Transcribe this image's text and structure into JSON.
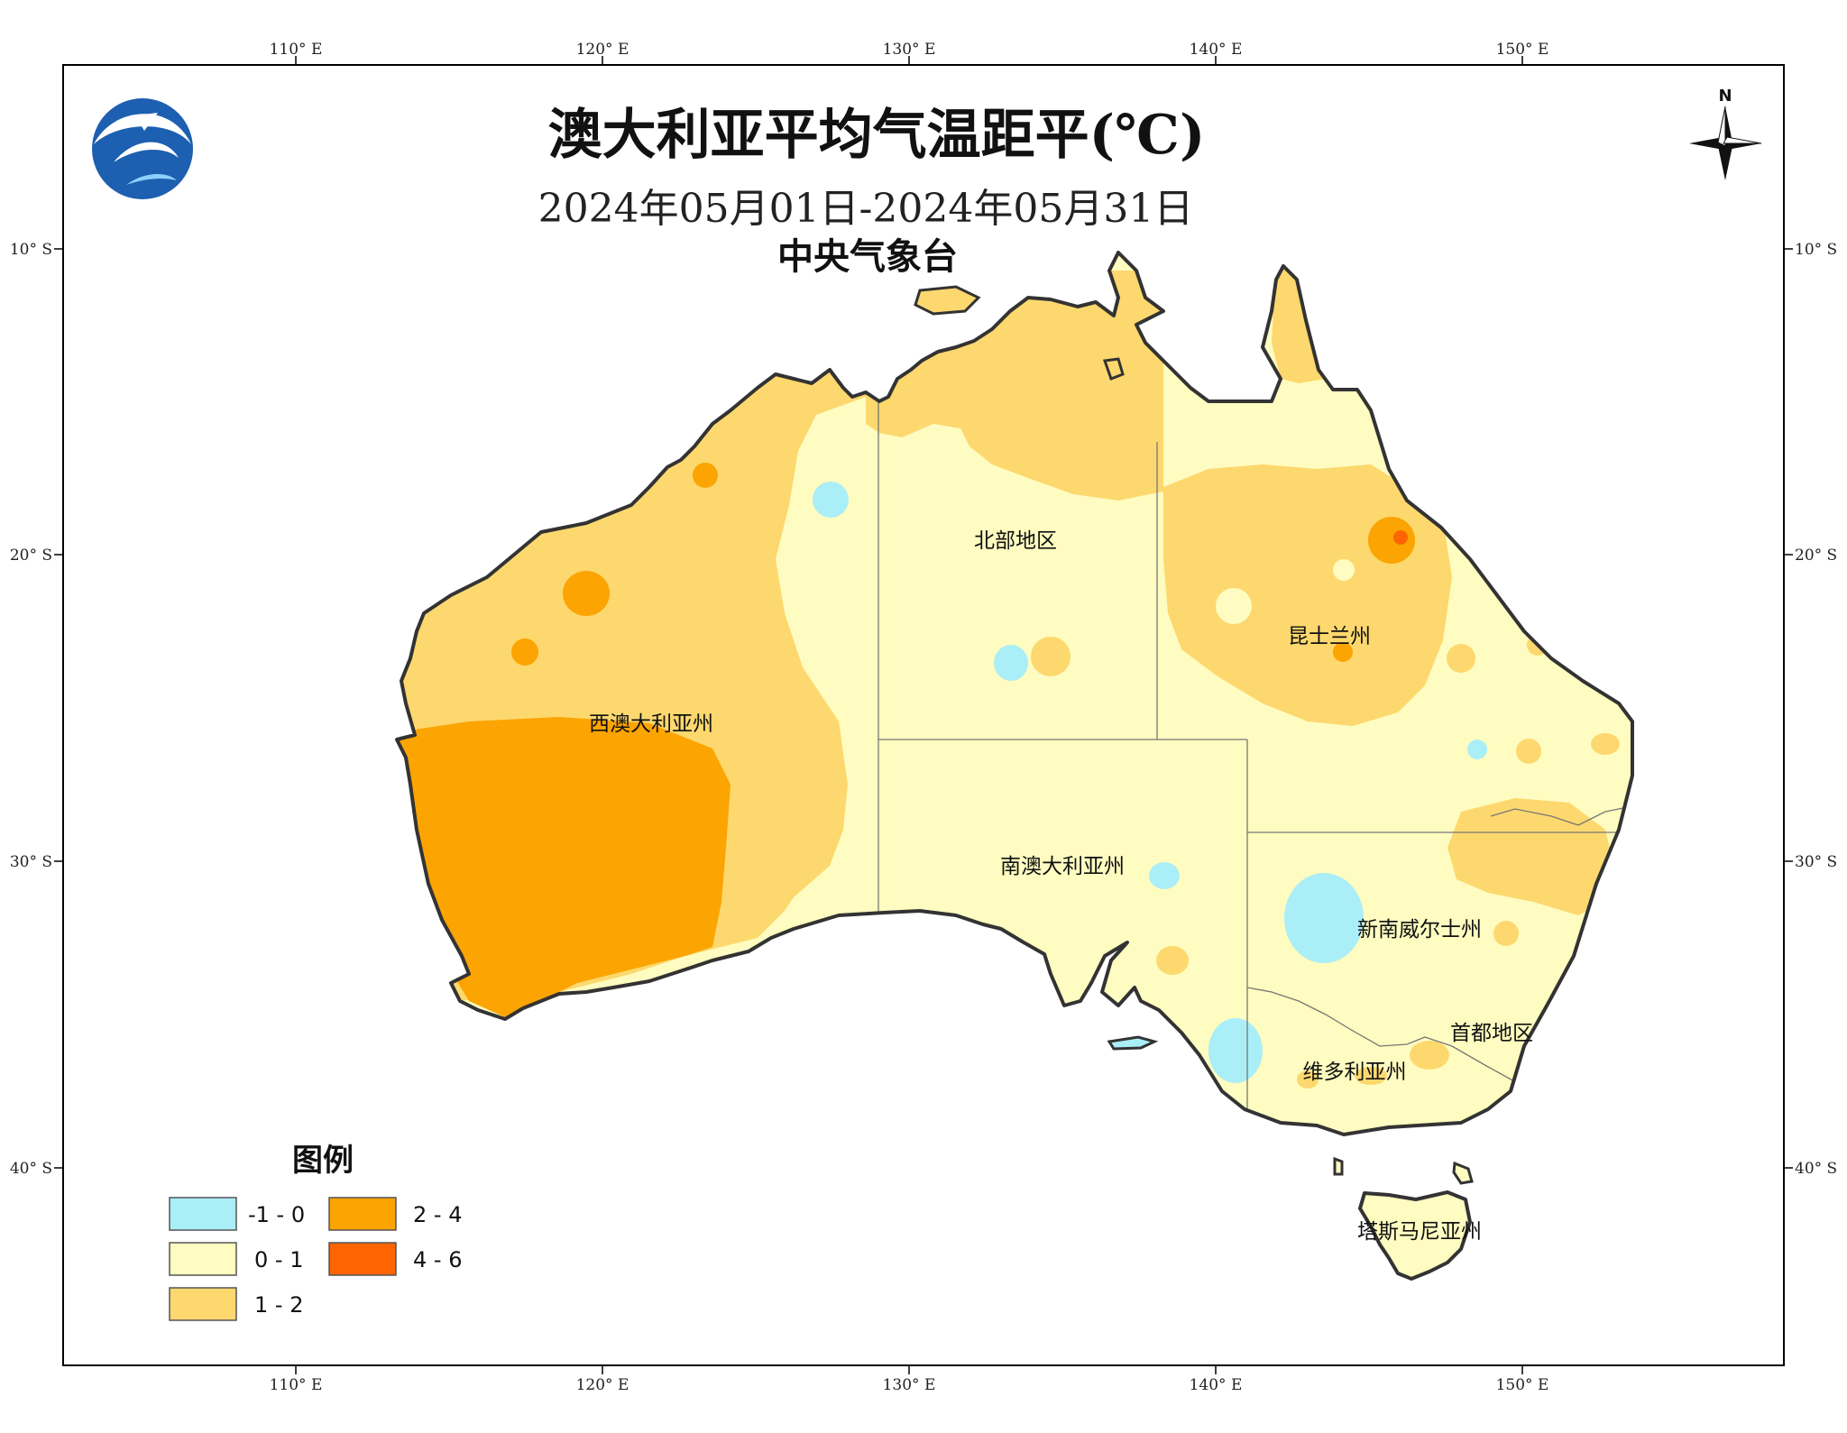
{
  "title": "澳大利亚平均气温距平(℃)",
  "date_range": "2024年05月01日-2024年05月31日",
  "organization": "中央气象台",
  "north_label": "N",
  "lon_ticks": [
    "110° E",
    "120° E",
    "130° E",
    "140° E",
    "150° E"
  ],
  "lat_ticks": [
    "10° S",
    "20° S",
    "30° S",
    "40° S"
  ],
  "regions": {
    "wa": "西澳大利亚州",
    "nt": "北部地区",
    "qld": "昆士兰州",
    "sa": "南澳大利亚州",
    "nsw": "新南威尔士州",
    "act": "首都地区",
    "vic": "维多利亚州",
    "tas": "塔斯马尼亚州"
  },
  "legend": {
    "title": "图例",
    "items": [
      {
        "label": "-1 - 0",
        "color": "#aaeef8"
      },
      {
        "label": "0 - 1",
        "color": "#fefcc0"
      },
      {
        "label": "1 - 2",
        "color": "#fdd86e"
      },
      {
        "label": "2 - 4",
        "color": "#fba402"
      },
      {
        "label": "4 - 6",
        "color": "#fc6502"
      }
    ]
  },
  "colors": {
    "neg_1_0": "#aaeef8",
    "c0_1": "#fefcc0",
    "c1_2": "#fdd86e",
    "c2_4": "#fba402",
    "c4_6": "#fc6502",
    "coast": "#333333",
    "frame": "#000000"
  },
  "logo_icon": "cma-logo-icon",
  "compass_icon": "north-arrow-icon"
}
